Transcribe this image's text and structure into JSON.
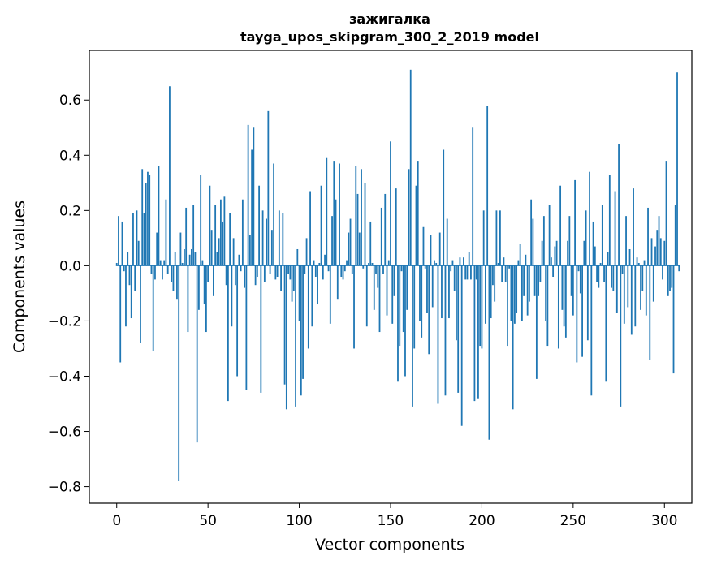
{
  "chart_data": {
    "type": "bar",
    "title": "зажигалка",
    "subtitle": "tayga_upos_skipgram_300_2_2019 model",
    "xlabel": "Vector components",
    "ylabel": "Components values",
    "xlim": [
      -15,
      315
    ],
    "ylim": [
      -0.86,
      0.78
    ],
    "xticks": [
      0,
      50,
      100,
      150,
      200,
      250,
      300
    ],
    "yticks": [
      -0.8,
      -0.6,
      -0.4,
      -0.2,
      0.0,
      0.2,
      0.4,
      0.6
    ],
    "ytick_labels": [
      "−0.8",
      "−0.6",
      "−0.4",
      "−0.2",
      "0.0",
      "0.2",
      "0.4",
      "0.6"
    ],
    "grid": false,
    "bar_color": "#1f77b4",
    "x_start": 0,
    "values": [
      0.01,
      0.18,
      -0.35,
      0.16,
      -0.02,
      -0.22,
      0.05,
      -0.07,
      -0.19,
      0.19,
      -0.09,
      0.2,
      0.09,
      -0.28,
      0.35,
      0.19,
      0.3,
      0.34,
      0.33,
      -0.03,
      -0.31,
      -0.05,
      0.12,
      0.36,
      0.02,
      -0.05,
      0.02,
      0.24,
      -0.03,
      0.65,
      -0.06,
      -0.09,
      0.05,
      -0.12,
      -0.78,
      0.12,
      0.01,
      0.06,
      0.21,
      -0.24,
      0.04,
      0.06,
      0.22,
      0.05,
      -0.64,
      -0.16,
      0.33,
      0.02,
      -0.14,
      -0.24,
      -0.06,
      0.29,
      0.13,
      -0.11,
      0.22,
      0.05,
      0.1,
      0.24,
      0.16,
      0.25,
      -0.07,
      -0.49,
      0.19,
      -0.22,
      0.1,
      -0.07,
      -0.4,
      0.04,
      -0.02,
      0.24,
      -0.08,
      -0.45,
      0.51,
      0.11,
      0.42,
      0.5,
      -0.07,
      -0.04,
      0.29,
      -0.46,
      0.2,
      -0.06,
      0.17,
      0.56,
      -0.03,
      0.13,
      0.37,
      -0.05,
      -0.04,
      0.2,
      -0.09,
      0.19,
      -0.43,
      -0.52,
      -0.03,
      -0.05,
      -0.13,
      -0.09,
      -0.51,
      0.06,
      -0.2,
      -0.47,
      -0.41,
      -0.03,
      0.1,
      -0.3,
      0.27,
      -0.22,
      0.02,
      -0.04,
      -0.14,
      0.01,
      0.29,
      -0.05,
      0.04,
      0.39,
      -0.02,
      -0.21,
      0.18,
      0.38,
      0.24,
      -0.12,
      0.37,
      -0.04,
      -0.05,
      -0.02,
      0.02,
      0.12,
      0.17,
      -0.03,
      -0.3,
      0.36,
      0.26,
      0.12,
      0.35,
      -0.01,
      0.3,
      -0.22,
      0.01,
      0.16,
      0.01,
      -0.16,
      -0.03,
      -0.08,
      -0.24,
      0.21,
      -0.03,
      0.26,
      -0.18,
      0.02,
      0.45,
      -0.21,
      -0.11,
      0.28,
      -0.42,
      -0.29,
      -0.02,
      -0.24,
      -0.4,
      -0.16,
      0.35,
      0.71,
      -0.51,
      -0.3,
      0.29,
      0.38,
      -0.2,
      -0.26,
      0.14,
      -0.01,
      -0.17,
      -0.32,
      0.11,
      -0.15,
      0.02,
      0.01,
      -0.5,
      0.12,
      -0.19,
      0.42,
      -0.47,
      0.17,
      -0.19,
      -0.02,
      0.02,
      -0.09,
      -0.27,
      -0.46,
      0.03,
      -0.58,
      0.03,
      -0.05,
      -0.05,
      0.05,
      -0.05,
      0.5,
      -0.49,
      -0.05,
      -0.48,
      -0.29,
      -0.3,
      0.2,
      -0.21,
      0.58,
      -0.63,
      -0.19,
      -0.07,
      -0.13,
      0.2,
      0.01,
      0.2,
      -0.06,
      0.03,
      -0.06,
      -0.29,
      -0.01,
      -0.2,
      -0.52,
      -0.21,
      -0.17,
      0.02,
      0.08,
      -0.2,
      -0.11,
      0.04,
      -0.18,
      -0.13,
      0.24,
      0.17,
      -0.11,
      -0.41,
      -0.11,
      -0.06,
      0.09,
      0.18,
      -0.2,
      -0.29,
      0.22,
      0.03,
      -0.04,
      0.07,
      0.09,
      -0.3,
      0.29,
      -0.16,
      -0.22,
      -0.26,
      0.09,
      0.18,
      -0.11,
      -0.18,
      0.31,
      -0.35,
      -0.02,
      -0.1,
      -0.33,
      0.09,
      0.2,
      -0.27,
      0.34,
      -0.47,
      0.16,
      0.07,
      -0.06,
      -0.08,
      0.01,
      0.22,
      -0.06,
      -0.42,
      0.05,
      0.33,
      -0.08,
      -0.09,
      0.27,
      -0.17,
      0.44,
      -0.51,
      -0.03,
      -0.21,
      0.18,
      -0.15,
      0.06,
      -0.25,
      0.28,
      -0.22,
      0.03,
      0.01,
      -0.16,
      -0.09,
      0.02,
      -0.18,
      0.21,
      -0.34,
      0.1,
      -0.13,
      0.07,
      0.13,
      0.18,
      0.1,
      -0.05,
      0.09,
      0.38,
      -0.11,
      -0.09,
      -0.08,
      -0.39,
      0.22,
      0.7,
      -0.02
    ]
  }
}
